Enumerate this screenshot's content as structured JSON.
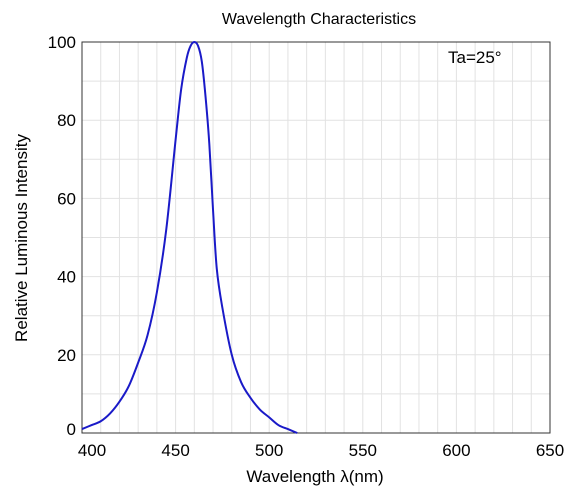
{
  "chart_data": {
    "type": "line",
    "title": "Wavelength Characteristics",
    "xlabel": "Wavelength λ(nm)",
    "ylabel": "Relative Luminous Intensity",
    "annotation": "Ta=25°",
    "xlim": [
      400,
      650
    ],
    "ylim": [
      0,
      100
    ],
    "x_ticks": [
      400,
      450,
      500,
      550,
      600,
      650
    ],
    "y_ticks": [
      0,
      20,
      40,
      60,
      80,
      100
    ],
    "grid": true,
    "line_color": "#1a1ac8",
    "grid_color": "#e2e2e2",
    "series": [
      {
        "points": [
          [
            400,
            1
          ],
          [
            405,
            2
          ],
          [
            410,
            3
          ],
          [
            415,
            5
          ],
          [
            420,
            8
          ],
          [
            425,
            12
          ],
          [
            430,
            18
          ],
          [
            435,
            25
          ],
          [
            440,
            36
          ],
          [
            445,
            52
          ],
          [
            450,
            75
          ],
          [
            453,
            88
          ],
          [
            456,
            96
          ],
          [
            458,
            99
          ],
          [
            460,
            100
          ],
          [
            462,
            99
          ],
          [
            464,
            95
          ],
          [
            466,
            86
          ],
          [
            468,
            74
          ],
          [
            470,
            57
          ],
          [
            472,
            42
          ],
          [
            475,
            32
          ],
          [
            480,
            20
          ],
          [
            485,
            13
          ],
          [
            490,
            9
          ],
          [
            495,
            6
          ],
          [
            500,
            4
          ],
          [
            505,
            2
          ],
          [
            510,
            1
          ],
          [
            515,
            0
          ]
        ]
      }
    ]
  }
}
